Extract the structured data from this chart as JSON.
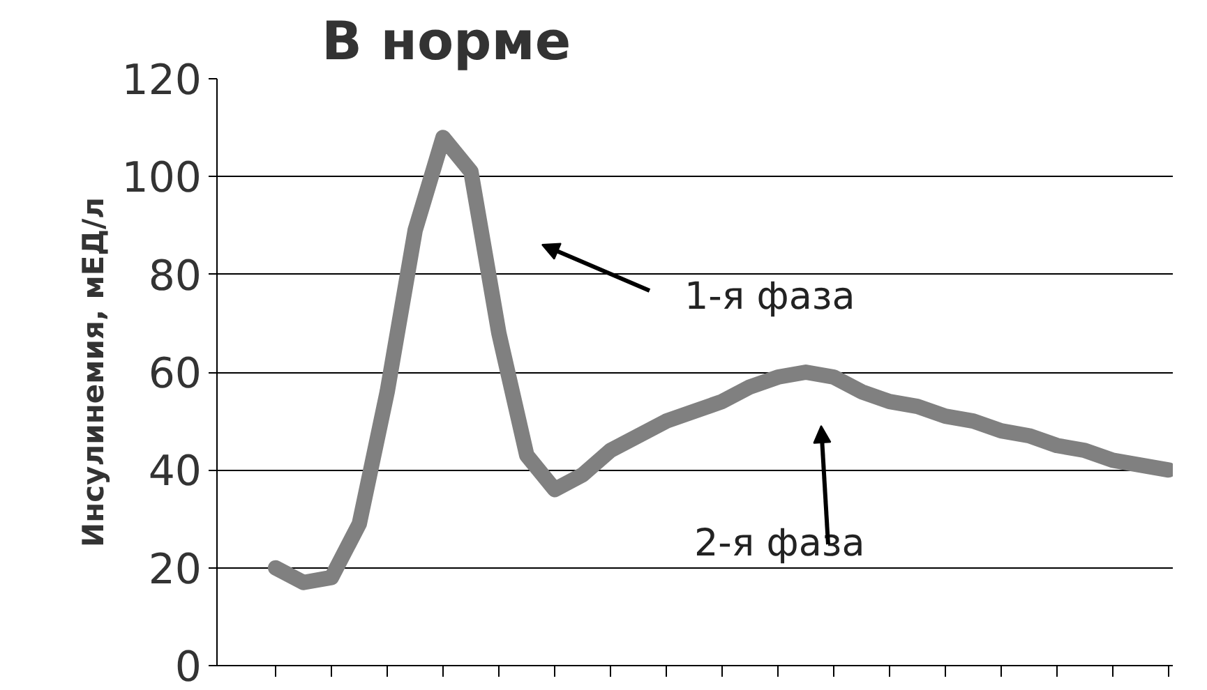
{
  "chart_data": {
    "type": "line",
    "title": "В норме",
    "ylabel": "Инсулинемия, мЕД/л",
    "categories": [
      null,
      null,
      null,
      null,
      null,
      null,
      null,
      null,
      null,
      null,
      null,
      null,
      null,
      null,
      null,
      null,
      null,
      null,
      null,
      null,
      null,
      null,
      null,
      null,
      null,
      null,
      null,
      null,
      null,
      null,
      null,
      null,
      null
    ],
    "series": [
      {
        "color": "#808080",
        "values": [
          20,
          17,
          18,
          29,
          56,
          89,
          108,
          101,
          68,
          43,
          36,
          39,
          44,
          47,
          50,
          52,
          54,
          57,
          59,
          60,
          59,
          56,
          54,
          53,
          51,
          50,
          48,
          47,
          45,
          44,
          42,
          41,
          40
        ]
      }
    ],
    "ylim": [
      0,
      120
    ],
    "yticks": [
      0,
      20,
      40,
      60,
      80,
      100,
      120
    ],
    "grid": "y",
    "marker": "none",
    "line_style": "solid",
    "annotations": [
      "1-я фаза",
      "2-я фаза"
    ]
  }
}
